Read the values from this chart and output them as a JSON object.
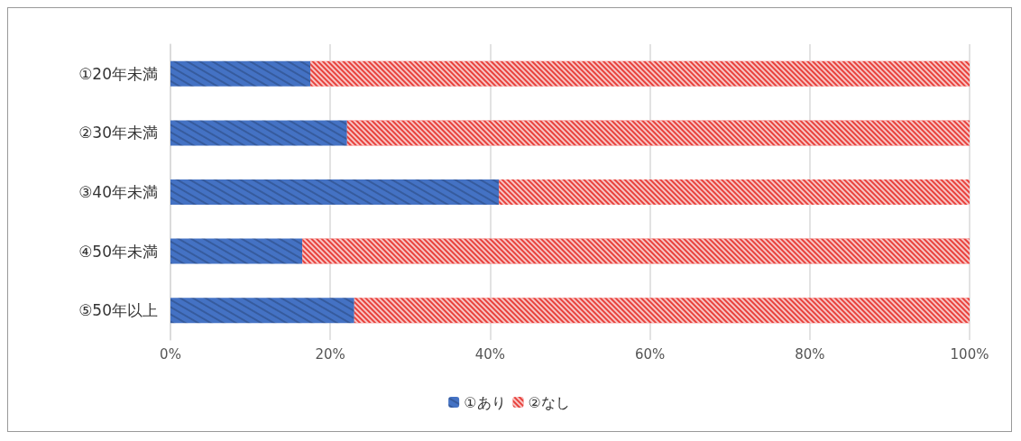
{
  "chart_data": {
    "type": "bar",
    "orientation": "horizontal",
    "stacked": true,
    "categories": [
      "①20年未満",
      "②30年未満",
      "③40年未満",
      "④50年未満",
      "⑤50年以上"
    ],
    "series": [
      {
        "name": "①あり",
        "color": "#4472c4",
        "values": [
          17.5,
          22.1,
          41.1,
          16.5,
          23.0
        ]
      },
      {
        "name": "②なし",
        "color": "#e8413c",
        "values": [
          82.5,
          77.9,
          58.9,
          83.5,
          77.0
        ]
      }
    ],
    "xlim": [
      0,
      100
    ],
    "xticks": [
      {
        "value": 0,
        "label": "0%"
      },
      {
        "value": 20,
        "label": "20%"
      },
      {
        "value": 40,
        "label": "40%"
      },
      {
        "value": 60,
        "label": "60%"
      },
      {
        "value": 80,
        "label": "80%"
      },
      {
        "value": 100,
        "label": "100%"
      }
    ],
    "grid": "x",
    "legend": "bottom"
  }
}
